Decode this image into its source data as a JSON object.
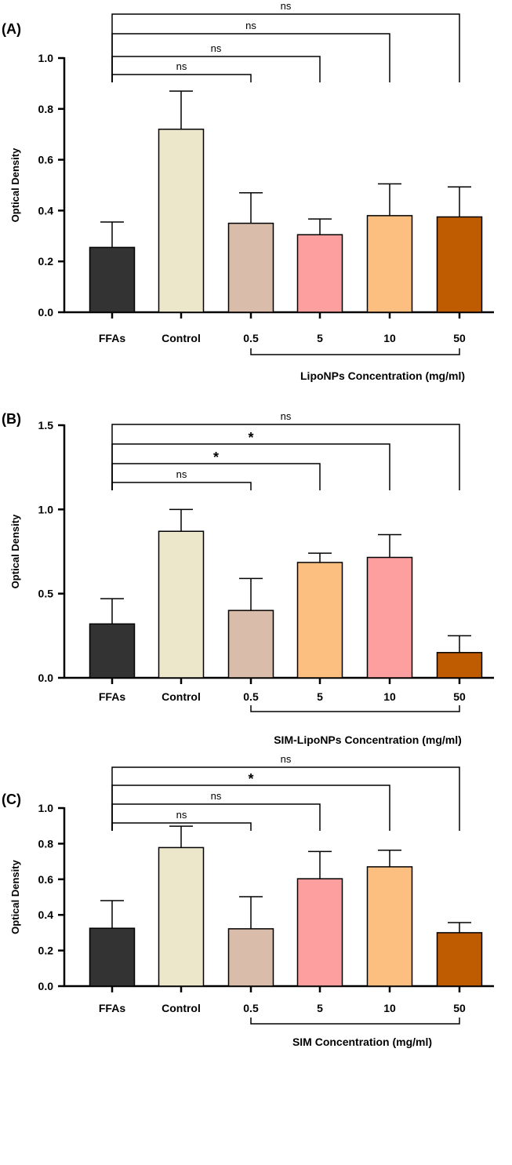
{
  "chart_data": [
    {
      "panel": "(A)",
      "type": "bar",
      "ylabel": "Optical Density",
      "ylim": [
        0,
        1.0
      ],
      "yticks": [
        "0.0",
        "0.2",
        "0.4",
        "0.6",
        "0.8",
        "1.0"
      ],
      "categories": [
        "FFAs",
        "Control",
        "0.5",
        "5",
        "10",
        "50"
      ],
      "values": [
        0.255,
        0.72,
        0.35,
        0.305,
        0.38,
        0.375
      ],
      "errors": [
        0.1,
        0.15,
        0.12,
        0.062,
        0.125,
        0.118
      ],
      "colors": [
        "#333333",
        "#ece6cb",
        "#d9bca9",
        "#fd9f9e",
        "#fdbf80",
        "#bf5b01"
      ],
      "group_label": "LipoNPs Concentration (mg/ml)",
      "comparisons": [
        {
          "from": "FFAs",
          "to": "0.5",
          "label": "ns"
        },
        {
          "from": "FFAs",
          "to": "5",
          "label": "ns"
        },
        {
          "from": "FFAs",
          "to": "10",
          "label": "ns"
        },
        {
          "from": "FFAs",
          "to": "50",
          "label": "ns"
        }
      ]
    },
    {
      "panel": "(B)",
      "type": "bar",
      "ylabel": "Optical Density",
      "ylim": [
        0,
        1.5
      ],
      "yticks": [
        "0.0",
        "0.5",
        "1.0",
        "1.5"
      ],
      "categories": [
        "FFAs",
        "Control",
        "0.5",
        "5",
        "10",
        "50"
      ],
      "values": [
        0.32,
        0.87,
        0.4,
        0.685,
        0.715,
        0.15
      ],
      "errors": [
        0.15,
        0.13,
        0.19,
        0.055,
        0.135,
        0.1
      ],
      "colors": [
        "#333333",
        "#ece6cb",
        "#d9bca9",
        "#fdbf80",
        "#fd9f9e",
        "#bf5b01"
      ],
      "group_label": "SIM-LipoNPs Concentration (mg/ml)",
      "comparisons": [
        {
          "from": "FFAs",
          "to": "0.5",
          "label": "ns"
        },
        {
          "from": "FFAs",
          "to": "5",
          "label": "*"
        },
        {
          "from": "FFAs",
          "to": "10",
          "label": "*"
        },
        {
          "from": "FFAs",
          "to": "50",
          "label": "ns"
        }
      ]
    },
    {
      "panel": "(C)",
      "type": "bar",
      "ylabel": "Optical Density",
      "ylim": [
        0,
        1.0
      ],
      "yticks": [
        "0.0",
        "0.2",
        "0.4",
        "0.6",
        "0.8",
        "1.0"
      ],
      "categories": [
        "FFAs",
        "Control",
        "0.5",
        "5",
        "10",
        "50"
      ],
      "values": [
        0.325,
        0.778,
        0.322,
        0.603,
        0.67,
        0.3
      ],
      "errors": [
        0.155,
        0.12,
        0.18,
        0.153,
        0.093,
        0.057
      ],
      "colors": [
        "#333333",
        "#ece6cb",
        "#d9bca9",
        "#fd9f9e",
        "#fdbf80",
        "#bf5b01"
      ],
      "group_label": "SIM Concentration (mg/ml)",
      "comparisons": [
        {
          "from": "FFAs",
          "to": "0.5",
          "label": "ns"
        },
        {
          "from": "FFAs",
          "to": "5",
          "label": "ns"
        },
        {
          "from": "FFAs",
          "to": "10",
          "label": "*"
        },
        {
          "from": "FFAs",
          "to": "50",
          "label": "ns"
        }
      ]
    }
  ]
}
